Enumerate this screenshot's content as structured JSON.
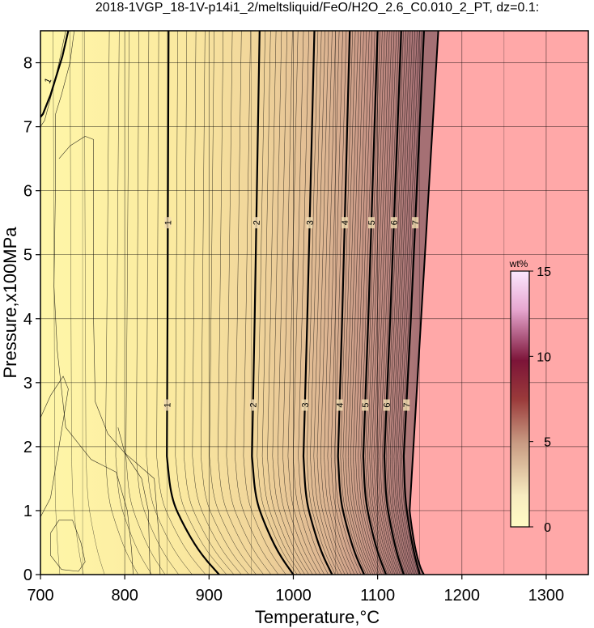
{
  "chart_data": {
    "type": "contour",
    "title": "2018-1VGP_18-1V-p14i1_2/meltsliquid/FeO/H2O_2.6_C0.010_2_PT, dz=0.1:",
    "xlabel": "Temperature,°C",
    "ylabel": "Pressure,x100MPa",
    "xlim": [
      700,
      1350
    ],
    "ylim": [
      0,
      8.5
    ],
    "x_ticks": [
      700,
      800,
      900,
      1000,
      1100,
      1200,
      1300
    ],
    "y_ticks": [
      0,
      1,
      2,
      3,
      4,
      5,
      6,
      7,
      8
    ],
    "grid": true,
    "colorbar": {
      "unit": "wt%",
      "range": [
        0,
        15
      ],
      "ticks": [
        0,
        5,
        10,
        15
      ],
      "position": "right-middle"
    },
    "above_liquidus_color": "#ffa8a8",
    "low_color": "#fff5a3",
    "contour_levels": [
      {
        "level": 1,
        "label": "1",
        "major": true,
        "T_at_top": 852,
        "T_at_kink": 850,
        "T_at_zero": 912
      },
      {
        "level": 2,
        "label": "2",
        "major": true,
        "T_at_top": 960,
        "T_at_kink": 951,
        "T_at_zero": 1000
      },
      {
        "level": 3,
        "label": "3",
        "major": true,
        "T_at_top": 1025,
        "T_at_kink": 1012,
        "T_at_zero": 1046
      },
      {
        "level": 4,
        "label": "4",
        "major": true,
        "T_at_top": 1067,
        "T_at_kink": 1053,
        "T_at_zero": 1084
      },
      {
        "level": 5,
        "label": "5",
        "major": true,
        "T_at_top": 1100,
        "T_at_kink": 1083,
        "T_at_zero": 1110
      },
      {
        "level": 6,
        "label": "6",
        "major": true,
        "T_at_top": 1128,
        "T_at_kink": 1108,
        "T_at_zero": 1131
      },
      {
        "level": 7,
        "label": "7",
        "major": true,
        "T_at_top": 1155,
        "T_at_kink": 1131,
        "T_at_zero": 1150
      }
    ],
    "contour_label_pressures": [
      5.5,
      2.65
    ],
    "liquidus_boundary": [
      [
        1172,
        8.5
      ],
      [
        1138,
        1.0
      ],
      [
        1145,
        0.2
      ],
      [
        1155,
        0
      ]
    ],
    "low_T_contour_label": "1"
  }
}
